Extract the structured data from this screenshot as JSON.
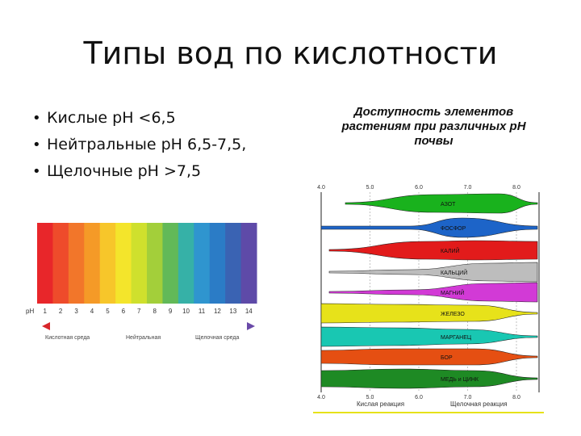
{
  "slide": {
    "title": "Типы вод по кислотности",
    "bullets": [
      "Кислые pH <6,5",
      "Нейтральные pH 6,5-7,5,",
      "Щелочные pH >7,5"
    ]
  },
  "ph_scale": {
    "prefix": "pH",
    "numbers": [
      "1",
      "2",
      "3",
      "4",
      "5",
      "6",
      "7",
      "8",
      "9",
      "10",
      "11",
      "12",
      "13",
      "14"
    ],
    "colors": [
      "#e8262a",
      "#ee4b2b",
      "#f2762a",
      "#f59a27",
      "#f7c62a",
      "#f4e52b",
      "#cfe02d",
      "#a3cf3a",
      "#62b958",
      "#36b1a7",
      "#2f95cf",
      "#2b7cc6",
      "#3a63b3",
      "#5e4aa8"
    ],
    "labels": [
      "Кислотная среда",
      "Нейтральная",
      "Щелочная среда"
    ]
  },
  "availability": {
    "title": "Доступность элементов растениям при различных pH почвы",
    "axis_ticks": [
      "4.0",
      "5.0",
      "6.0",
      "7.0",
      "8.0"
    ],
    "bottom_labels": [
      "Кислая реакция",
      "Щелочная реакция"
    ],
    "elements": [
      {
        "label": "АЗОТ",
        "color": "#19b21d"
      },
      {
        "label": "ФОСФОР",
        "color": "#1d64c8"
      },
      {
        "label": "КАЛИЙ",
        "color": "#e21b1b"
      },
      {
        "label": "КАЛЬЦИЙ",
        "color": "#bdbdbd"
      },
      {
        "label": "МАГНИЙ",
        "color": "#d23ad6"
      },
      {
        "label": "ЖЕЛЕЗО",
        "color": "#e7e21a"
      },
      {
        "label": "МАРГАНЕЦ",
        "color": "#19c7b2"
      },
      {
        "label": "БОР",
        "color": "#e54f12"
      },
      {
        "label": "МЕДЬ и ЦИНК",
        "color": "#1e8a24"
      }
    ]
  }
}
